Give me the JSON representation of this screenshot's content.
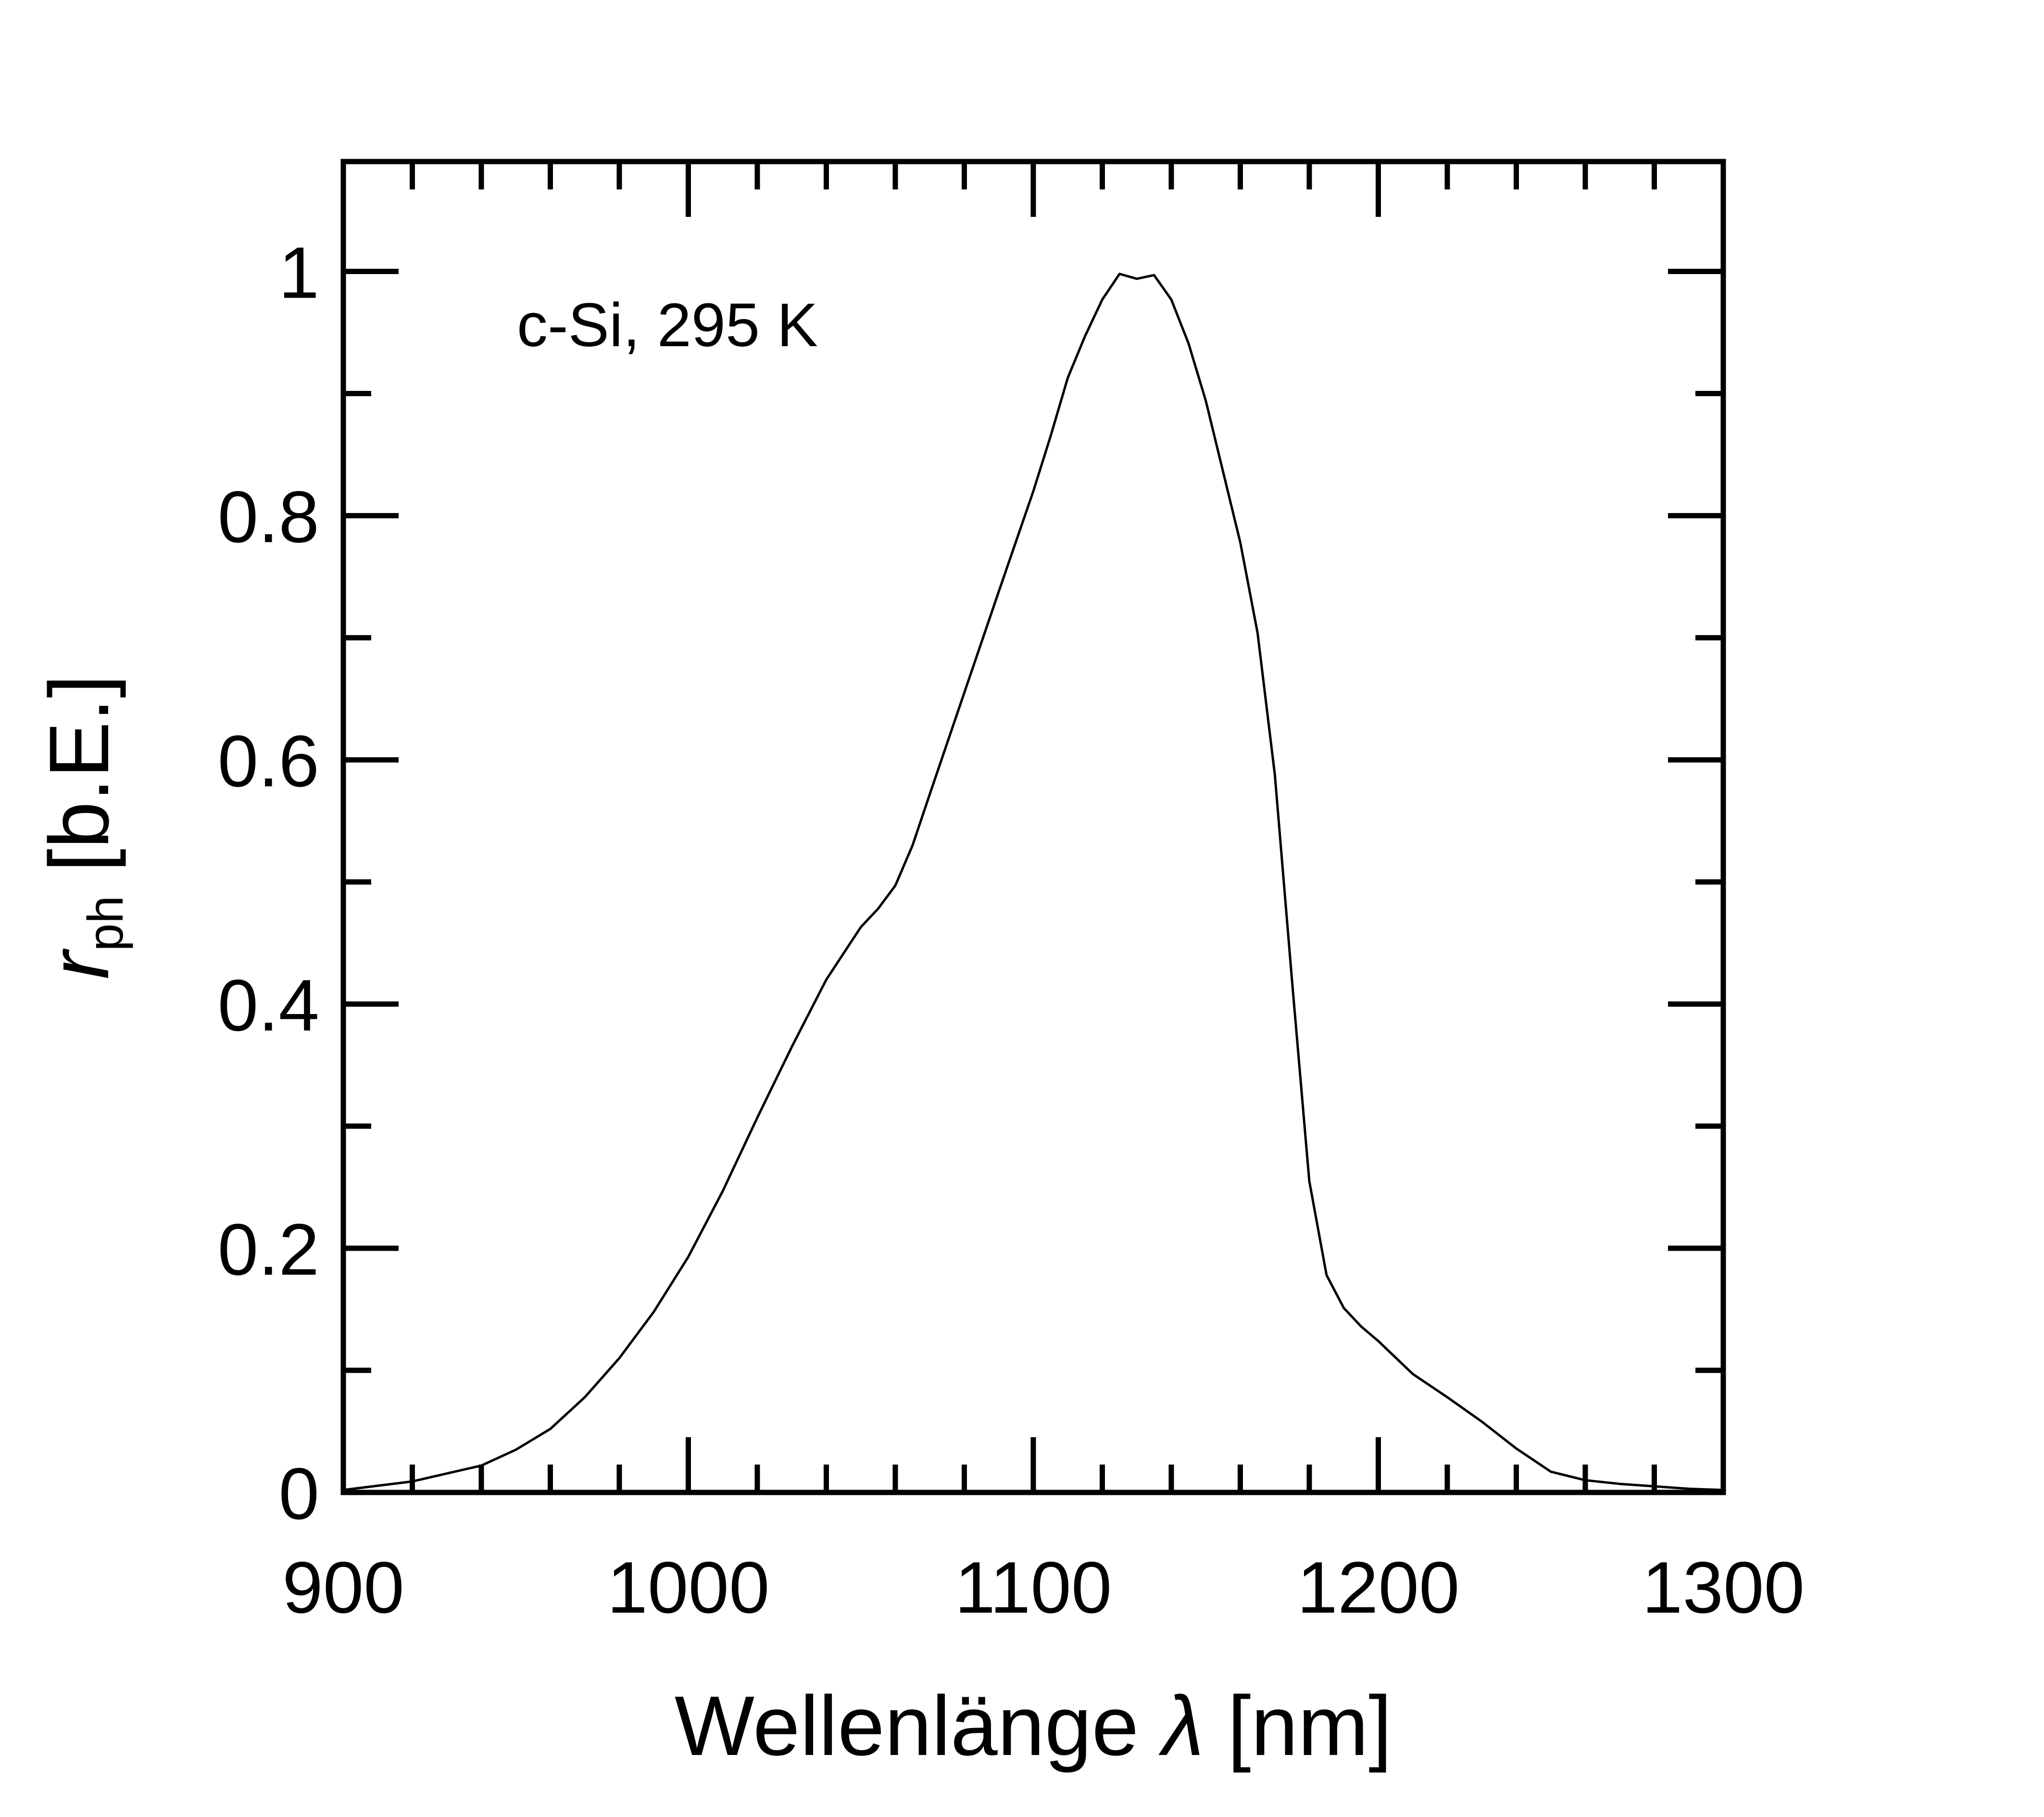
{
  "chart_data": {
    "type": "line",
    "title": "",
    "annotation": "c-Si, 295 K",
    "xlabel": {
      "main": "Wellenlänge ",
      "symbol": "λ",
      "unit": " [nm]"
    },
    "ylabel": {
      "symbol": "r",
      "subscript": "ph",
      "unit": " [b.E.]"
    },
    "xlim": [
      900,
      1300
    ],
    "ylim": [
      0,
      1.09
    ],
    "xticks": [
      900,
      1000,
      1100,
      1200,
      1300
    ],
    "xtick_labels": [
      "900",
      "1000",
      "1100",
      "1200",
      "1300"
    ],
    "yticks": [
      0,
      0.2,
      0.4,
      0.6,
      0.8,
      1
    ],
    "ytick_labels": [
      "0",
      "0.2",
      "0.4",
      "0.6",
      "0.8",
      "1"
    ],
    "x_minor_step": 20,
    "y_minor_step": 0.1,
    "grid": false,
    "legend": "none",
    "line_color": "#000000",
    "series": [
      {
        "x": [
          900,
          920,
          940,
          950,
          960,
          970,
          980,
          990,
          1000,
          1010,
          1020,
          1030,
          1040,
          1050,
          1055,
          1060,
          1065,
          1070,
          1080,
          1090,
          1100,
          1105,
          1110,
          1115,
          1120,
          1125,
          1130,
          1135,
          1140,
          1145,
          1150,
          1160,
          1165,
          1170,
          1175,
          1180,
          1185,
          1190,
          1195,
          1200,
          1210,
          1220,
          1230,
          1240,
          1250,
          1260,
          1270,
          1280,
          1290,
          1300
        ],
        "y": [
          0.002,
          0.009,
          0.022,
          0.035,
          0.052,
          0.078,
          0.11,
          0.148,
          0.193,
          0.247,
          0.307,
          0.365,
          0.42,
          0.463,
          0.478,
          0.497,
          0.53,
          0.572,
          0.655,
          0.738,
          0.82,
          0.865,
          0.913,
          0.947,
          0.977,
          0.998,
          0.994,
          0.997,
          0.977,
          0.941,
          0.894,
          0.778,
          0.704,
          0.588,
          0.419,
          0.255,
          0.178,
          0.151,
          0.136,
          0.124,
          0.097,
          0.078,
          0.058,
          0.036,
          0.017,
          0.01,
          0.007,
          0.005,
          0.003,
          0.002
        ]
      }
    ]
  }
}
